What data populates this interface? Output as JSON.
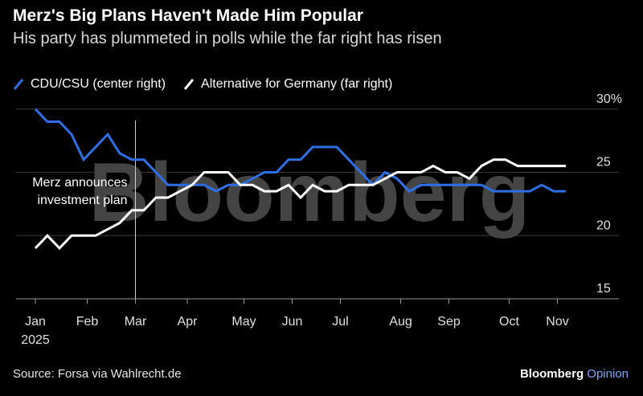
{
  "title": "Merz's Big Plans Haven't Made Him Popular",
  "subtitle": "His party has plummeted in polls while the far right has risen",
  "source": "Source: Forsa via Wahlrecht.de",
  "brand": {
    "name": "Bloomberg",
    "suffix": "Opinion"
  },
  "watermark": "Bloomberg",
  "colors": {
    "cdu": "#2f6fe6",
    "afd": "#ffffff",
    "background": "#000000",
    "grid": "#3a3a3a",
    "watermark": "#444444"
  },
  "chart_data": {
    "type": "line",
    "x_unit": "week of 2025",
    "xlim": [
      0,
      44
    ],
    "ylim": [
      15,
      31
    ],
    "y_ticks": [
      {
        "value": 15,
        "label": "15"
      },
      {
        "value": 20,
        "label": "20"
      },
      {
        "value": 25,
        "label": "25"
      },
      {
        "value": 30,
        "label": "30%"
      }
    ],
    "x_ticks": [
      {
        "value": 0,
        "label": "Jan",
        "sublabel": "2025"
      },
      {
        "value": 4.3,
        "label": "Feb"
      },
      {
        "value": 8.3,
        "label": "Mar"
      },
      {
        "value": 12.6,
        "label": "Apr"
      },
      {
        "value": 17.3,
        "label": "May"
      },
      {
        "value": 21.3,
        "label": "Jun"
      },
      {
        "value": 25.3,
        "label": "Jul"
      },
      {
        "value": 30.3,
        "label": "Aug"
      },
      {
        "value": 34.3,
        "label": "Sep"
      },
      {
        "value": 39.3,
        "label": "Oct"
      },
      {
        "value": 43.3,
        "label": "Nov"
      }
    ],
    "annotation": {
      "x": 8.3,
      "lines": [
        "Merz announces",
        "investment plan"
      ]
    },
    "series": [
      {
        "name": "CDU/CSU (center right)",
        "color": "#2f6fe6",
        "x": [
          0,
          1,
          2,
          3,
          4,
          5,
          6,
          7,
          8,
          9,
          10,
          11,
          12,
          13,
          14,
          15,
          16,
          17,
          18,
          19,
          20,
          21,
          22,
          23,
          24,
          25,
          26,
          27,
          28,
          29,
          30,
          31,
          32,
          33,
          34,
          35,
          36,
          37,
          38,
          39,
          40,
          41,
          42,
          43,
          44
        ],
        "y": [
          30,
          29,
          29,
          28,
          26,
          27,
          28,
          26.5,
          26,
          26,
          25,
          24,
          24,
          24,
          24,
          23.5,
          24,
          24,
          24.5,
          25,
          25,
          26,
          26,
          27,
          27,
          27,
          26,
          25,
          24,
          25,
          24.5,
          23.5,
          24,
          24,
          24,
          24,
          24,
          24,
          23.5,
          23.5,
          23.5,
          23.5,
          24,
          23.5,
          23.5
        ]
      },
      {
        "name": "Alternative for Germany (far right)",
        "color": "#ffffff",
        "x": [
          0,
          1,
          2,
          3,
          4,
          5,
          6,
          7,
          8,
          9,
          10,
          11,
          12,
          13,
          14,
          15,
          16,
          17,
          18,
          19,
          20,
          21,
          22,
          23,
          24,
          25,
          26,
          27,
          28,
          29,
          30,
          31,
          32,
          33,
          34,
          35,
          36,
          37,
          38,
          39,
          40,
          41,
          42,
          43,
          44
        ],
        "y": [
          19,
          20,
          19,
          20,
          20,
          20,
          20.5,
          21,
          22,
          22,
          23,
          23,
          23.5,
          24,
          25,
          25,
          25,
          24,
          24,
          23.5,
          23.5,
          24,
          23,
          24,
          23.5,
          23.5,
          24,
          24,
          24,
          24.5,
          25,
          25,
          25,
          25.5,
          25,
          25,
          24.5,
          25.5,
          26,
          26,
          25.5,
          25.5,
          25.5,
          25.5,
          25.5
        ]
      }
    ]
  }
}
